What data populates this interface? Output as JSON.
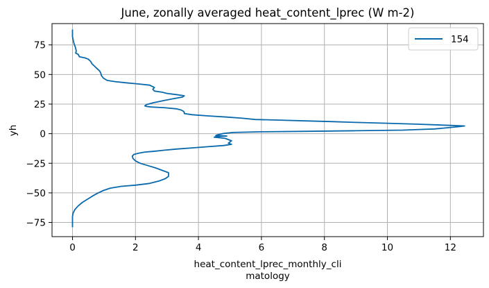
{
  "chart_data": {
    "type": "line",
    "title": "June, zonally averaged heat_content_lprec (W m-2)",
    "xlabel_lines": [
      "heat_content_lprec_monthly_cli",
      "matology"
    ],
    "ylabel": "yh",
    "xlim": [
      -0.65,
      13.05
    ],
    "ylim": [
      -87,
      93
    ],
    "x_ticks": [
      0,
      2,
      4,
      6,
      8,
      10,
      12
    ],
    "y_ticks": [
      -75,
      -50,
      -25,
      0,
      25,
      50,
      75
    ],
    "grid": true,
    "legend_position": "top-right",
    "colors": {
      "line": "#0868ac",
      "grid": "#b0b0b0",
      "axes": "#000000"
    },
    "series": [
      {
        "name": "154",
        "points": [
          [
            0.0,
            -79
          ],
          [
            0.0,
            -75
          ],
          [
            0.0,
            -70
          ],
          [
            0.02,
            -67
          ],
          [
            0.08,
            -64
          ],
          [
            0.18,
            -61
          ],
          [
            0.32,
            -58
          ],
          [
            0.5,
            -55
          ],
          [
            0.68,
            -52
          ],
          [
            0.82,
            -50
          ],
          [
            0.98,
            -48
          ],
          [
            1.2,
            -46
          ],
          [
            1.55,
            -44.5
          ],
          [
            2.0,
            -43.5
          ],
          [
            2.45,
            -42
          ],
          [
            2.75,
            -40
          ],
          [
            2.95,
            -38
          ],
          [
            3.05,
            -36
          ],
          [
            3.05,
            -33
          ],
          [
            2.85,
            -31
          ],
          [
            2.65,
            -29
          ],
          [
            2.4,
            -27
          ],
          [
            2.15,
            -25
          ],
          [
            2.0,
            -23
          ],
          [
            1.92,
            -21
          ],
          [
            1.9,
            -19
          ],
          [
            1.95,
            -17.5
          ],
          [
            2.1,
            -16.5
          ],
          [
            2.3,
            -15.5
          ],
          [
            2.55,
            -15
          ],
          [
            2.9,
            -14
          ],
          [
            3.3,
            -13
          ],
          [
            3.8,
            -12
          ],
          [
            4.3,
            -11
          ],
          [
            4.8,
            -10
          ],
          [
            5.05,
            -9
          ],
          [
            4.95,
            -8
          ],
          [
            5.0,
            -7
          ],
          [
            5.05,
            -6
          ],
          [
            4.95,
            -5
          ],
          [
            4.85,
            -4
          ],
          [
            4.7,
            -3.5
          ],
          [
            4.5,
            -3
          ],
          [
            4.55,
            -2.5
          ],
          [
            4.9,
            -2
          ],
          [
            4.55,
            -1.5
          ],
          [
            4.6,
            -1
          ],
          [
            4.8,
            0.2
          ],
          [
            5.1,
            1
          ],
          [
            6.0,
            1.6
          ],
          [
            7.5,
            2
          ],
          [
            9.0,
            2.5
          ],
          [
            10.5,
            3
          ],
          [
            11.0,
            3.5
          ],
          [
            11.5,
            4
          ],
          [
            11.9,
            5
          ],
          [
            12.3,
            6
          ],
          [
            12.45,
            6.5
          ],
          [
            12.0,
            7
          ],
          [
            11.0,
            8
          ],
          [
            10.0,
            8.8
          ],
          [
            9.0,
            9.5
          ],
          [
            8.2,
            10.2
          ],
          [
            7.4,
            10.8
          ],
          [
            6.5,
            11.5
          ],
          [
            5.8,
            12
          ],
          [
            5.4,
            13
          ],
          [
            4.9,
            14
          ],
          [
            4.3,
            15
          ],
          [
            3.8,
            16
          ],
          [
            3.55,
            17
          ],
          [
            3.55,
            18
          ],
          [
            3.52,
            19
          ],
          [
            3.45,
            20
          ],
          [
            3.3,
            21
          ],
          [
            2.9,
            22
          ],
          [
            2.5,
            22.5
          ],
          [
            2.35,
            23
          ],
          [
            2.3,
            23.5
          ],
          [
            2.35,
            24.5
          ],
          [
            2.55,
            26
          ],
          [
            2.9,
            28
          ],
          [
            3.2,
            29.5
          ],
          [
            3.5,
            31
          ],
          [
            3.55,
            32
          ],
          [
            3.3,
            33
          ],
          [
            3.0,
            34
          ],
          [
            2.85,
            35
          ],
          [
            2.6,
            36
          ],
          [
            2.55,
            37.5
          ],
          [
            2.6,
            39
          ],
          [
            2.45,
            41
          ],
          [
            2.1,
            42
          ],
          [
            1.7,
            43
          ],
          [
            1.35,
            44
          ],
          [
            1.1,
            45
          ],
          [
            0.98,
            47
          ],
          [
            0.92,
            49
          ],
          [
            0.9,
            51
          ],
          [
            0.86,
            53
          ],
          [
            0.78,
            55
          ],
          [
            0.7,
            57
          ],
          [
            0.62,
            59
          ],
          [
            0.58,
            61
          ],
          [
            0.5,
            63
          ],
          [
            0.4,
            64
          ],
          [
            0.22,
            65
          ],
          [
            0.18,
            67
          ],
          [
            0.1,
            68
          ],
          [
            0.12,
            70
          ],
          [
            0.1,
            72
          ],
          [
            0.08,
            74
          ],
          [
            0.05,
            76
          ],
          [
            0.03,
            78
          ],
          [
            0.0,
            82
          ],
          [
            0.0,
            85
          ],
          [
            0.0,
            88
          ]
        ]
      }
    ]
  }
}
